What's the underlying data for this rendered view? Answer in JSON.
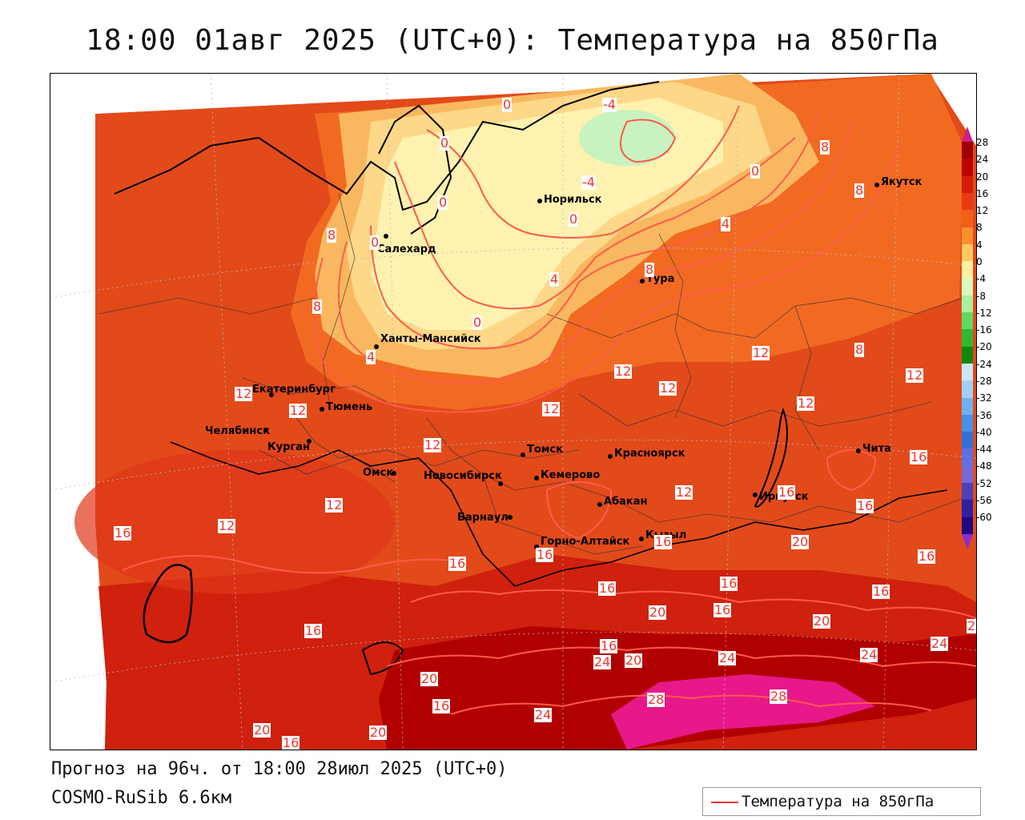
{
  "title": "18:00 01авг 2025 (UTC+0): Температура на 850гПа",
  "footer": {
    "forecast": "Прогноз на 96ч. от 18:00 28июл 2025 (UTC+0)",
    "model": "COSMO-RuSib 6.6км"
  },
  "legend": {
    "label": "Температура на 850гПа",
    "color": "#e8382e"
  },
  "colorbar": {
    "ticks": [
      "28",
      "24",
      "20",
      "16",
      "12",
      "8",
      "4",
      "0",
      "-4",
      "-8",
      "-12",
      "-16",
      "-20",
      "-24",
      "-28",
      "-32",
      "-36",
      "-40",
      "-44",
      "-48",
      "-52",
      "-56",
      "-60"
    ],
    "colors": [
      "#a00000",
      "#c00000",
      "#d81a0a",
      "#e83a10",
      "#f06018",
      "#f89030",
      "#ffc860",
      "#fff0a0",
      "#d8f8c0",
      "#a8f0a0",
      "#60d860",
      "#30b830",
      "#108810",
      "#c8e8f8",
      "#a0d0f8",
      "#70b0f0",
      "#4890e8",
      "#3070d8",
      "#6070e0",
      "#7868d8",
      "#5040b8",
      "#3020a0",
      "#200880"
    ],
    "top_arrow_color": "#cc1f86",
    "bottom_arrow_color": "#8a2fd0"
  },
  "cities": [
    {
      "name": "Якутск"
    },
    {
      "name": "Норильск"
    },
    {
      "name": "Салехард"
    },
    {
      "name": "Тура"
    },
    {
      "name": "Ханты-Мансийск"
    },
    {
      "name": "Екатеринбург"
    },
    {
      "name": "Тюмень"
    },
    {
      "name": "Челябинск"
    },
    {
      "name": "Курган"
    },
    {
      "name": "Омск"
    },
    {
      "name": "Томск"
    },
    {
      "name": "Красноярск"
    },
    {
      "name": "Новосибирск"
    },
    {
      "name": "Кемерово"
    },
    {
      "name": "Барнаул"
    },
    {
      "name": "Абакан"
    },
    {
      "name": "Иркутск"
    },
    {
      "name": "Чита"
    },
    {
      "name": "Горно-Алтайск"
    },
    {
      "name": "Кызыл"
    }
  ],
  "contour_labels": [
    "-4",
    "0",
    "0",
    "-4",
    "0",
    "0",
    "0",
    "4",
    "0",
    "8",
    "8",
    "8",
    "4",
    "8",
    "0",
    "4",
    "8",
    "12",
    "12",
    "12",
    "12",
    "8",
    "12",
    "12",
    "12",
    "12",
    "12",
    "12",
    "12",
    "16",
    "16",
    "12",
    "16",
    "16",
    "16",
    "16",
    "16",
    "20",
    "16",
    "16",
    "16",
    "16",
    "20",
    "16",
    "16",
    "16",
    "24",
    "20",
    "24",
    "20",
    "24",
    "24",
    "20",
    "28",
    "28",
    "16",
    "24",
    "20",
    "16",
    "20",
    "2"
  ]
}
